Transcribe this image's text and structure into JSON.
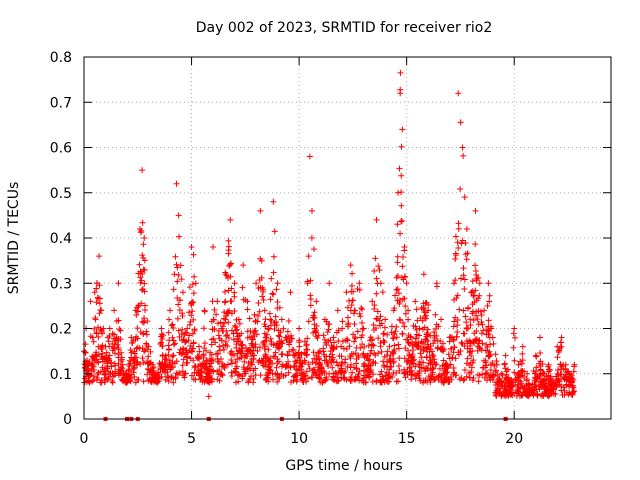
{
  "chart_data": {
    "type": "scatter",
    "title": "Day 002 of 2023, SRMTID for receiver rio2",
    "xlabel": "GPS time / hours",
    "ylabel": "SRMTID / TECUs",
    "xlim": [
      0,
      24.5
    ],
    "ylim": [
      0,
      0.8
    ],
    "xticks": [
      0,
      5,
      10,
      15,
      20
    ],
    "xtick_labels": [
      "0",
      "5",
      "10",
      "15",
      "20"
    ],
    "yticks": [
      0,
      0.1,
      0.2,
      0.3,
      0.4,
      0.5,
      0.6,
      0.7,
      0.8
    ],
    "ytick_labels": [
      "0",
      "0.1",
      "0.2",
      "0.3",
      "0.4",
      "0.5",
      "0.6",
      "0.7",
      "0.8"
    ],
    "grid": true,
    "marker": "+",
    "color": "#ff0000",
    "data_range_hours": [
      0,
      22.8
    ],
    "zero_points_x": [
      1.0,
      2.0,
      2.2,
      2.5,
      5.8,
      9.2,
      19.6
    ],
    "series": [
      {
        "name": "SRMTID",
        "x": [
          0.0,
          0.1,
          0.2,
          0.3,
          0.4,
          0.5,
          0.6,
          0.7,
          0.8,
          0.9,
          1.0,
          1.2,
          1.4,
          1.6,
          1.8,
          2.0,
          2.2,
          2.4,
          2.6,
          2.7,
          2.8,
          3.0,
          3.2,
          3.4,
          3.6,
          3.8,
          4.0,
          4.2,
          4.3,
          4.4,
          4.6,
          4.8,
          5.0,
          5.2,
          5.4,
          5.6,
          5.8,
          6.0,
          6.2,
          6.4,
          6.6,
          6.8,
          7.0,
          7.2,
          7.4,
          7.6,
          7.8,
          8.0,
          8.2,
          8.4,
          8.6,
          8.8,
          9.0,
          9.2,
          9.4,
          9.6,
          9.8,
          10.0,
          10.2,
          10.4,
          10.5,
          10.6,
          10.8,
          11.0,
          11.2,
          11.4,
          11.6,
          11.8,
          12.0,
          12.2,
          12.4,
          12.6,
          12.8,
          13.0,
          13.2,
          13.4,
          13.6,
          13.8,
          14.0,
          14.2,
          14.4,
          14.6,
          14.7,
          14.8,
          14.9,
          15.0,
          15.2,
          15.4,
          15.6,
          15.8,
          16.0,
          16.2,
          16.4,
          16.6,
          16.8,
          17.0,
          17.2,
          17.4,
          17.6,
          17.8,
          18.0,
          18.2,
          18.4,
          18.6,
          18.8,
          19.0,
          19.2,
          19.4,
          19.6,
          19.8,
          20.0,
          20.2,
          20.4,
          20.6,
          20.8,
          21.0,
          21.2,
          21.4,
          21.6,
          21.8,
          22.0,
          22.2,
          22.4,
          22.6,
          22.8
        ],
        "y": [
          0.15,
          0.2,
          0.12,
          0.26,
          0.18,
          0.28,
          0.3,
          0.36,
          0.24,
          0.2,
          0.16,
          0.2,
          0.24,
          0.3,
          0.12,
          0.08,
          0.18,
          0.24,
          0.42,
          0.55,
          0.4,
          0.16,
          0.12,
          0.08,
          0.2,
          0.14,
          0.24,
          0.32,
          0.52,
          0.45,
          0.28,
          0.2,
          0.38,
          0.3,
          0.12,
          0.24,
          0.05,
          0.38,
          0.26,
          0.2,
          0.32,
          0.44,
          0.3,
          0.22,
          0.34,
          0.26,
          0.18,
          0.3,
          0.46,
          0.24,
          0.2,
          0.48,
          0.3,
          0.22,
          0.18,
          0.28,
          0.14,
          0.2,
          0.1,
          0.3,
          0.58,
          0.46,
          0.26,
          0.12,
          0.22,
          0.3,
          0.18,
          0.24,
          0.2,
          0.28,
          0.34,
          0.24,
          0.3,
          0.2,
          0.14,
          0.26,
          0.44,
          0.3,
          0.22,
          0.16,
          0.24,
          0.5,
          0.72,
          0.64,
          0.38,
          0.3,
          0.18,
          0.26,
          0.2,
          0.32,
          0.24,
          0.14,
          0.3,
          0.22,
          0.12,
          0.18,
          0.3,
          0.72,
          0.6,
          0.42,
          0.28,
          0.46,
          0.3,
          0.24,
          0.3,
          0.18,
          0.12,
          0.1,
          0.14,
          0.08,
          0.2,
          0.12,
          0.16,
          0.1,
          0.06,
          0.14,
          0.18,
          0.1,
          0.12,
          0.08,
          0.16,
          0.18,
          0.12,
          0.1,
          0.12
        ]
      }
    ]
  }
}
